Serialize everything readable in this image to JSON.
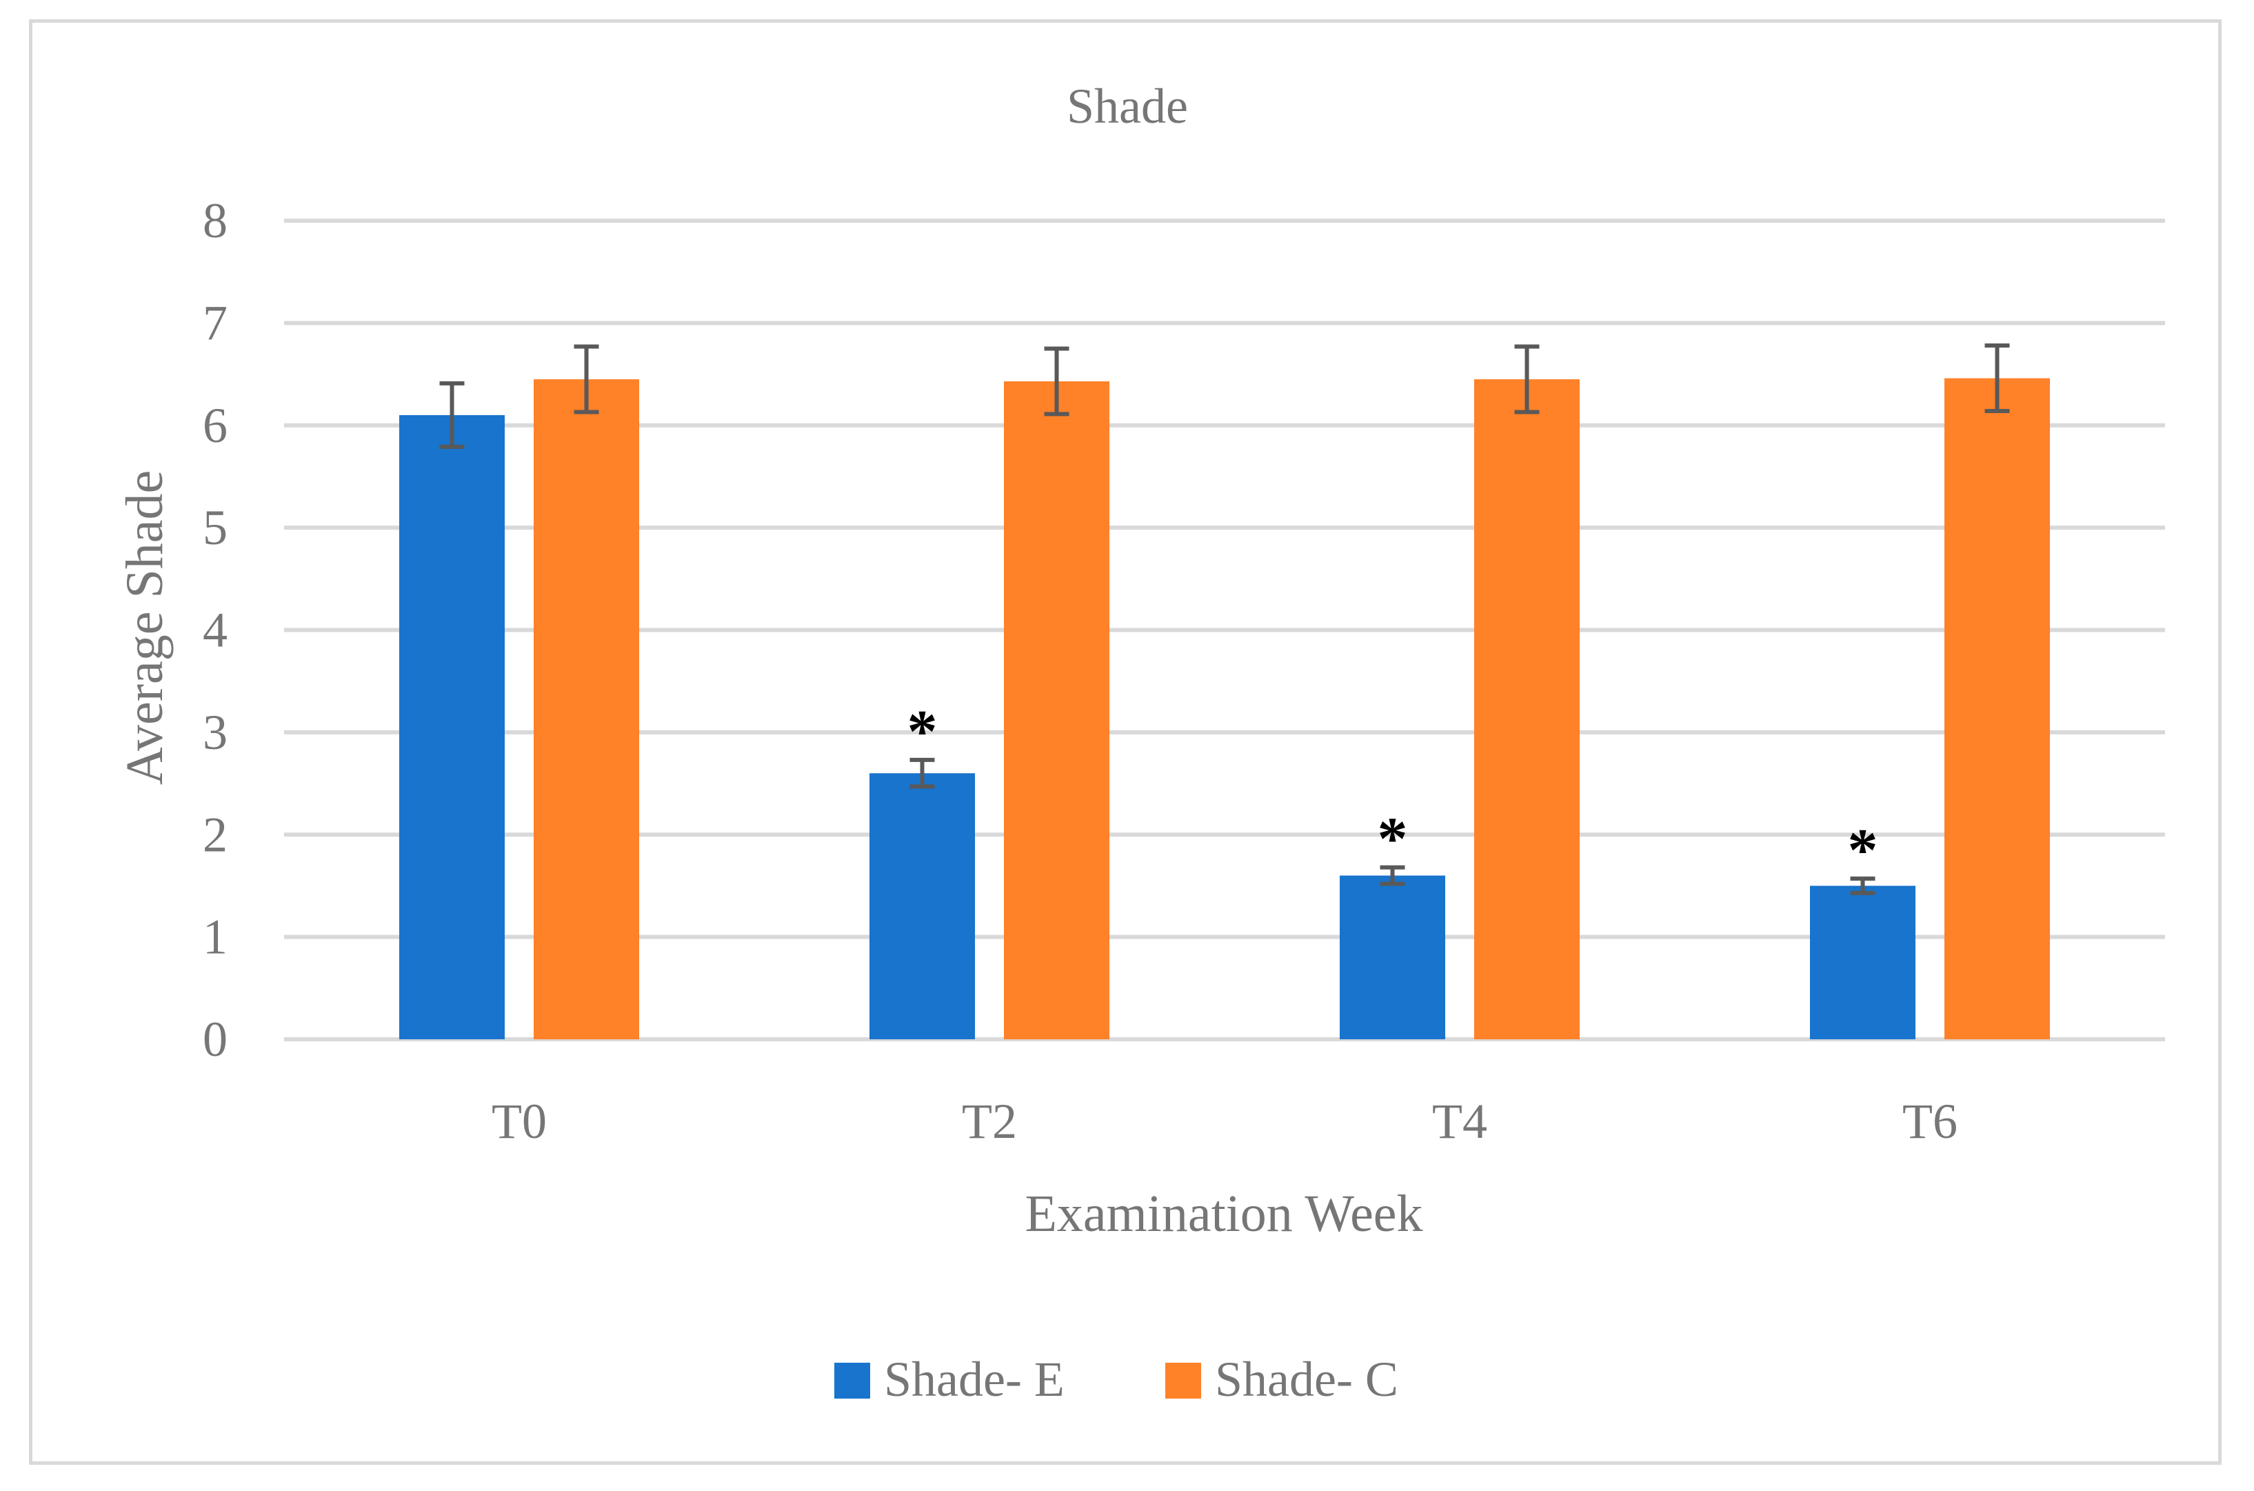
{
  "chart_data": {
    "type": "bar",
    "title": "Shade",
    "xlabel": "Examination Week",
    "ylabel": "Average Shade",
    "categories": [
      "T0",
      "T2",
      "T4",
      "T6"
    ],
    "ylim": [
      0,
      8
    ],
    "yticks": [
      "0",
      "1",
      "2",
      "3",
      "4",
      "5",
      "6",
      "7",
      "8"
    ],
    "grid": true,
    "legend_position": "bottom",
    "series": [
      {
        "name": "Shade- E",
        "color": "#1874cd",
        "values": [
          6.1,
          2.6,
          1.6,
          1.5
        ],
        "errors": [
          0.31,
          0.13,
          0.08,
          0.07
        ],
        "markers": [
          "",
          "*",
          "*",
          "*"
        ]
      },
      {
        "name": "Shade- C",
        "color": "#ff8128",
        "values": [
          6.45,
          6.43,
          6.45,
          6.46
        ],
        "errors": [
          0.32,
          0.32,
          0.32,
          0.32
        ],
        "markers": [
          "",
          "",
          "",
          ""
        ]
      }
    ]
  }
}
